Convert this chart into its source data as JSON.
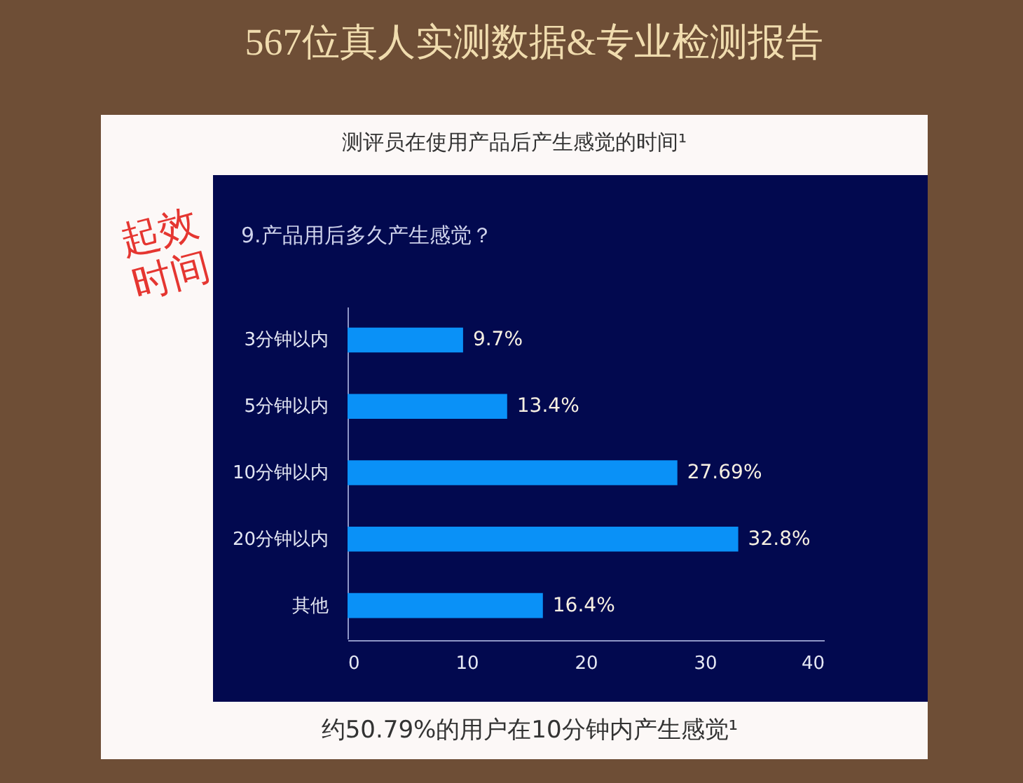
{
  "chart_data": {
    "type": "bar",
    "orientation": "horizontal",
    "title": "567位真人实测数据&专业检测报告",
    "subtitle": "测评员在使用产品后产生感觉的时间¹",
    "annotations": [
      "9.产品用后多久产生感觉？",
      "约50.79%的用户在10分钟内产生感觉¹",
      "起效时间"
    ],
    "categories": [
      "3分钟以内",
      "5分钟以内",
      "10分钟以内",
      "20分钟以内",
      "其他"
    ],
    "values": [
      9.7,
      13.4,
      27.69,
      32.8,
      16.4
    ],
    "value_labels": [
      "9.7%",
      "13.4%",
      "27.69%",
      "32.8%",
      "16.4%"
    ],
    "color": "#0a91f7",
    "xlim": [
      0,
      40
    ],
    "xticks": [
      0,
      10,
      20,
      30,
      40
    ]
  }
}
